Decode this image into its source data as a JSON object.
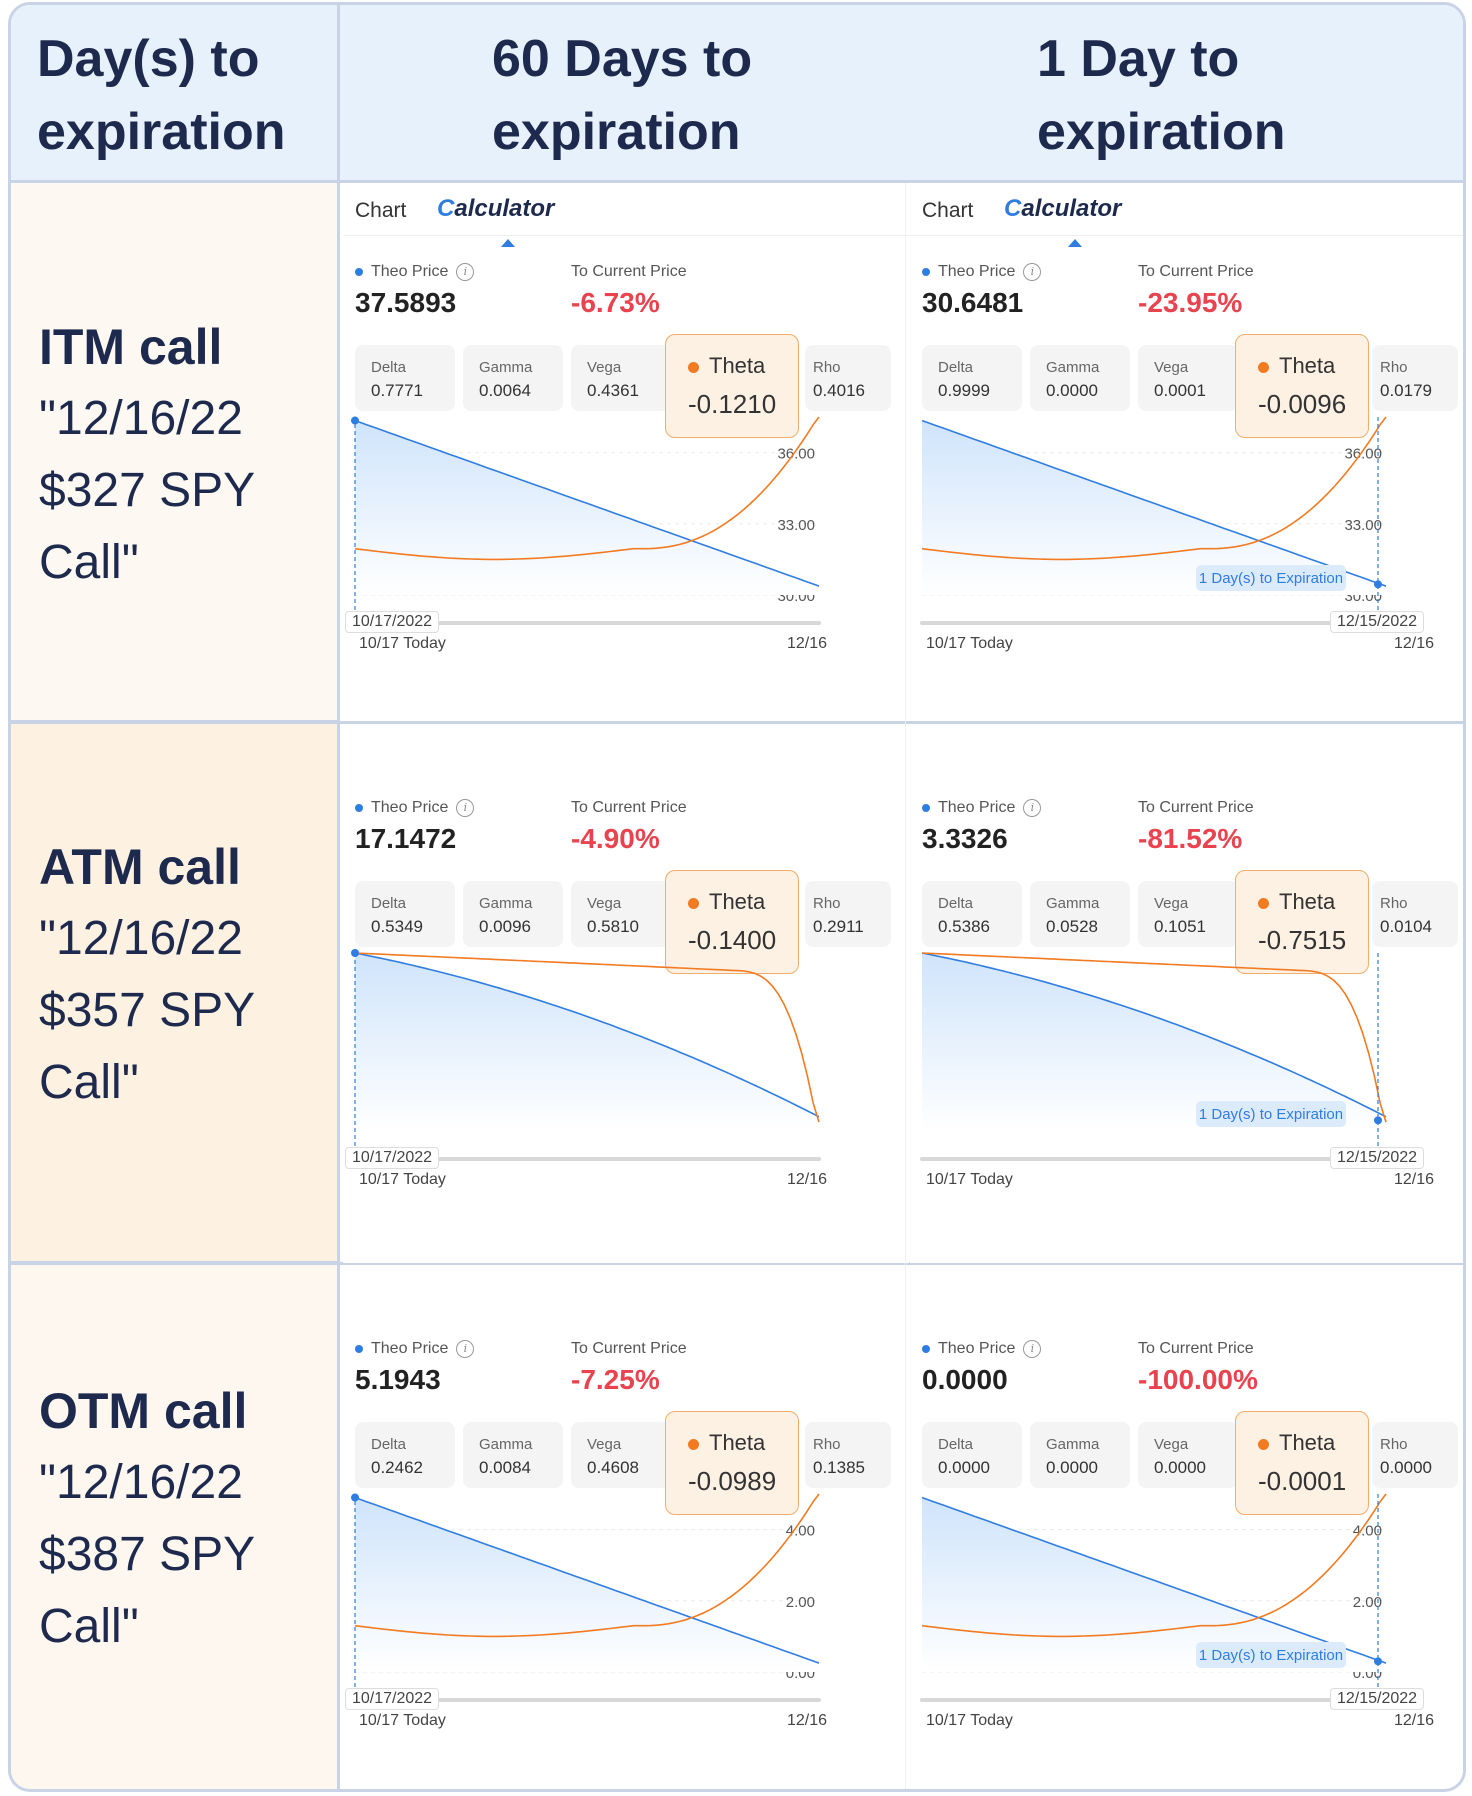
{
  "header": {
    "col0": [
      "Day(s) to",
      "expiration"
    ],
    "col1": [
      "60 Days to",
      "expiration"
    ],
    "col2": [
      "1 Day to",
      "expiration"
    ]
  },
  "tabs": {
    "chart": "Chart",
    "calculator": "Calculator"
  },
  "labels": {
    "theo_price": "Theo Price",
    "to_current": "To Current Price",
    "delta": "Delta",
    "gamma": "Gamma",
    "vega": "Vega",
    "theta": "Theta",
    "rho": "Rho",
    "expiry_tag": "1 Day(s) to Expiration",
    "today": "10/17 Today",
    "end": "12/16",
    "start_date": "10/17/2022",
    "last_date": "12/15/2022"
  },
  "colors": {
    "theo_line": "#2f7de0",
    "theta_line": "#f27b22",
    "negative": "#e8434e",
    "atm_row": "#fdf1e2",
    "otm_row": "#fdf7f0"
  },
  "rows": [
    {
      "title": "ITM call",
      "sub": [
        "\"12/16/22",
        "$327 SPY",
        "Call\""
      ],
      "cells": [
        {
          "theo": "37.5893",
          "pct": "-6.73%",
          "delta": "0.7771",
          "gamma": "0.0064",
          "vega": "0.4361",
          "theta": "-0.1210",
          "rho": "0.4016"
        },
        {
          "theo": "30.6481",
          "pct": "-23.95%",
          "delta": "0.9999",
          "gamma": "0.0000",
          "vega": "0.0001",
          "theta": "-0.0096",
          "rho": "0.0179"
        }
      ],
      "yticks": [
        "36.00",
        "33.00",
        "30.00"
      ]
    },
    {
      "title": "ATM call",
      "sub": [
        "\"12/16/22",
        "$357 SPY",
        "Call\""
      ],
      "cells": [
        {
          "theo": "17.1472",
          "pct": "-4.90%",
          "delta": "0.5349",
          "gamma": "0.0096",
          "vega": "0.5810",
          "theta": "-0.1400",
          "rho": "0.2911"
        },
        {
          "theo": "3.3326",
          "pct": "-81.52%",
          "delta": "0.5386",
          "gamma": "0.0528",
          "vega": "0.1051",
          "theta": "-0.7515",
          "rho": "0.0104"
        }
      ],
      "yticks": []
    },
    {
      "title": "OTM call",
      "sub": [
        "\"12/16/22",
        "$387 SPY",
        "Call\""
      ],
      "cells": [
        {
          "theo": "5.1943",
          "pct": "-7.25%",
          "delta": "0.2462",
          "gamma": "0.0084",
          "vega": "0.4608",
          "theta": "-0.0989",
          "rho": "0.1385"
        },
        {
          "theo": "0.0000",
          "pct": "-100.00%",
          "delta": "0.0000",
          "gamma": "0.0000",
          "vega": "0.0000",
          "theta": "-0.0001",
          "rho": "0.0000"
        }
      ],
      "yticks": [
        "4.00",
        "2.00",
        "0.00"
      ]
    }
  ],
  "chart_data": [
    {
      "type": "line",
      "row": "ITM call",
      "x": [
        "10/17",
        "12/16"
      ],
      "yticks": [
        30,
        33,
        36
      ],
      "series": [
        {
          "name": "Theo Price",
          "shape": "decreasing linear from ~37.6 to ~30.6"
        },
        {
          "name": "Theta",
          "shape": "flat then sharply rising near expiration"
        }
      ]
    },
    {
      "type": "line",
      "row": "ATM call",
      "x": [
        "10/17",
        "12/16"
      ],
      "series": [
        {
          "name": "Theo Price",
          "shape": "concave decreasing to near zero"
        },
        {
          "name": "Theta",
          "shape": "flat then sharply falling near expiration"
        }
      ]
    },
    {
      "type": "line",
      "row": "OTM call",
      "x": [
        "10/17",
        "12/16"
      ],
      "yticks": [
        0,
        2,
        4
      ],
      "series": [
        {
          "name": "Theo Price",
          "shape": "decreasing from ~5.19 to 0"
        },
        {
          "name": "Theta",
          "shape": "flat then sharply rising near expiration"
        }
      ]
    }
  ]
}
